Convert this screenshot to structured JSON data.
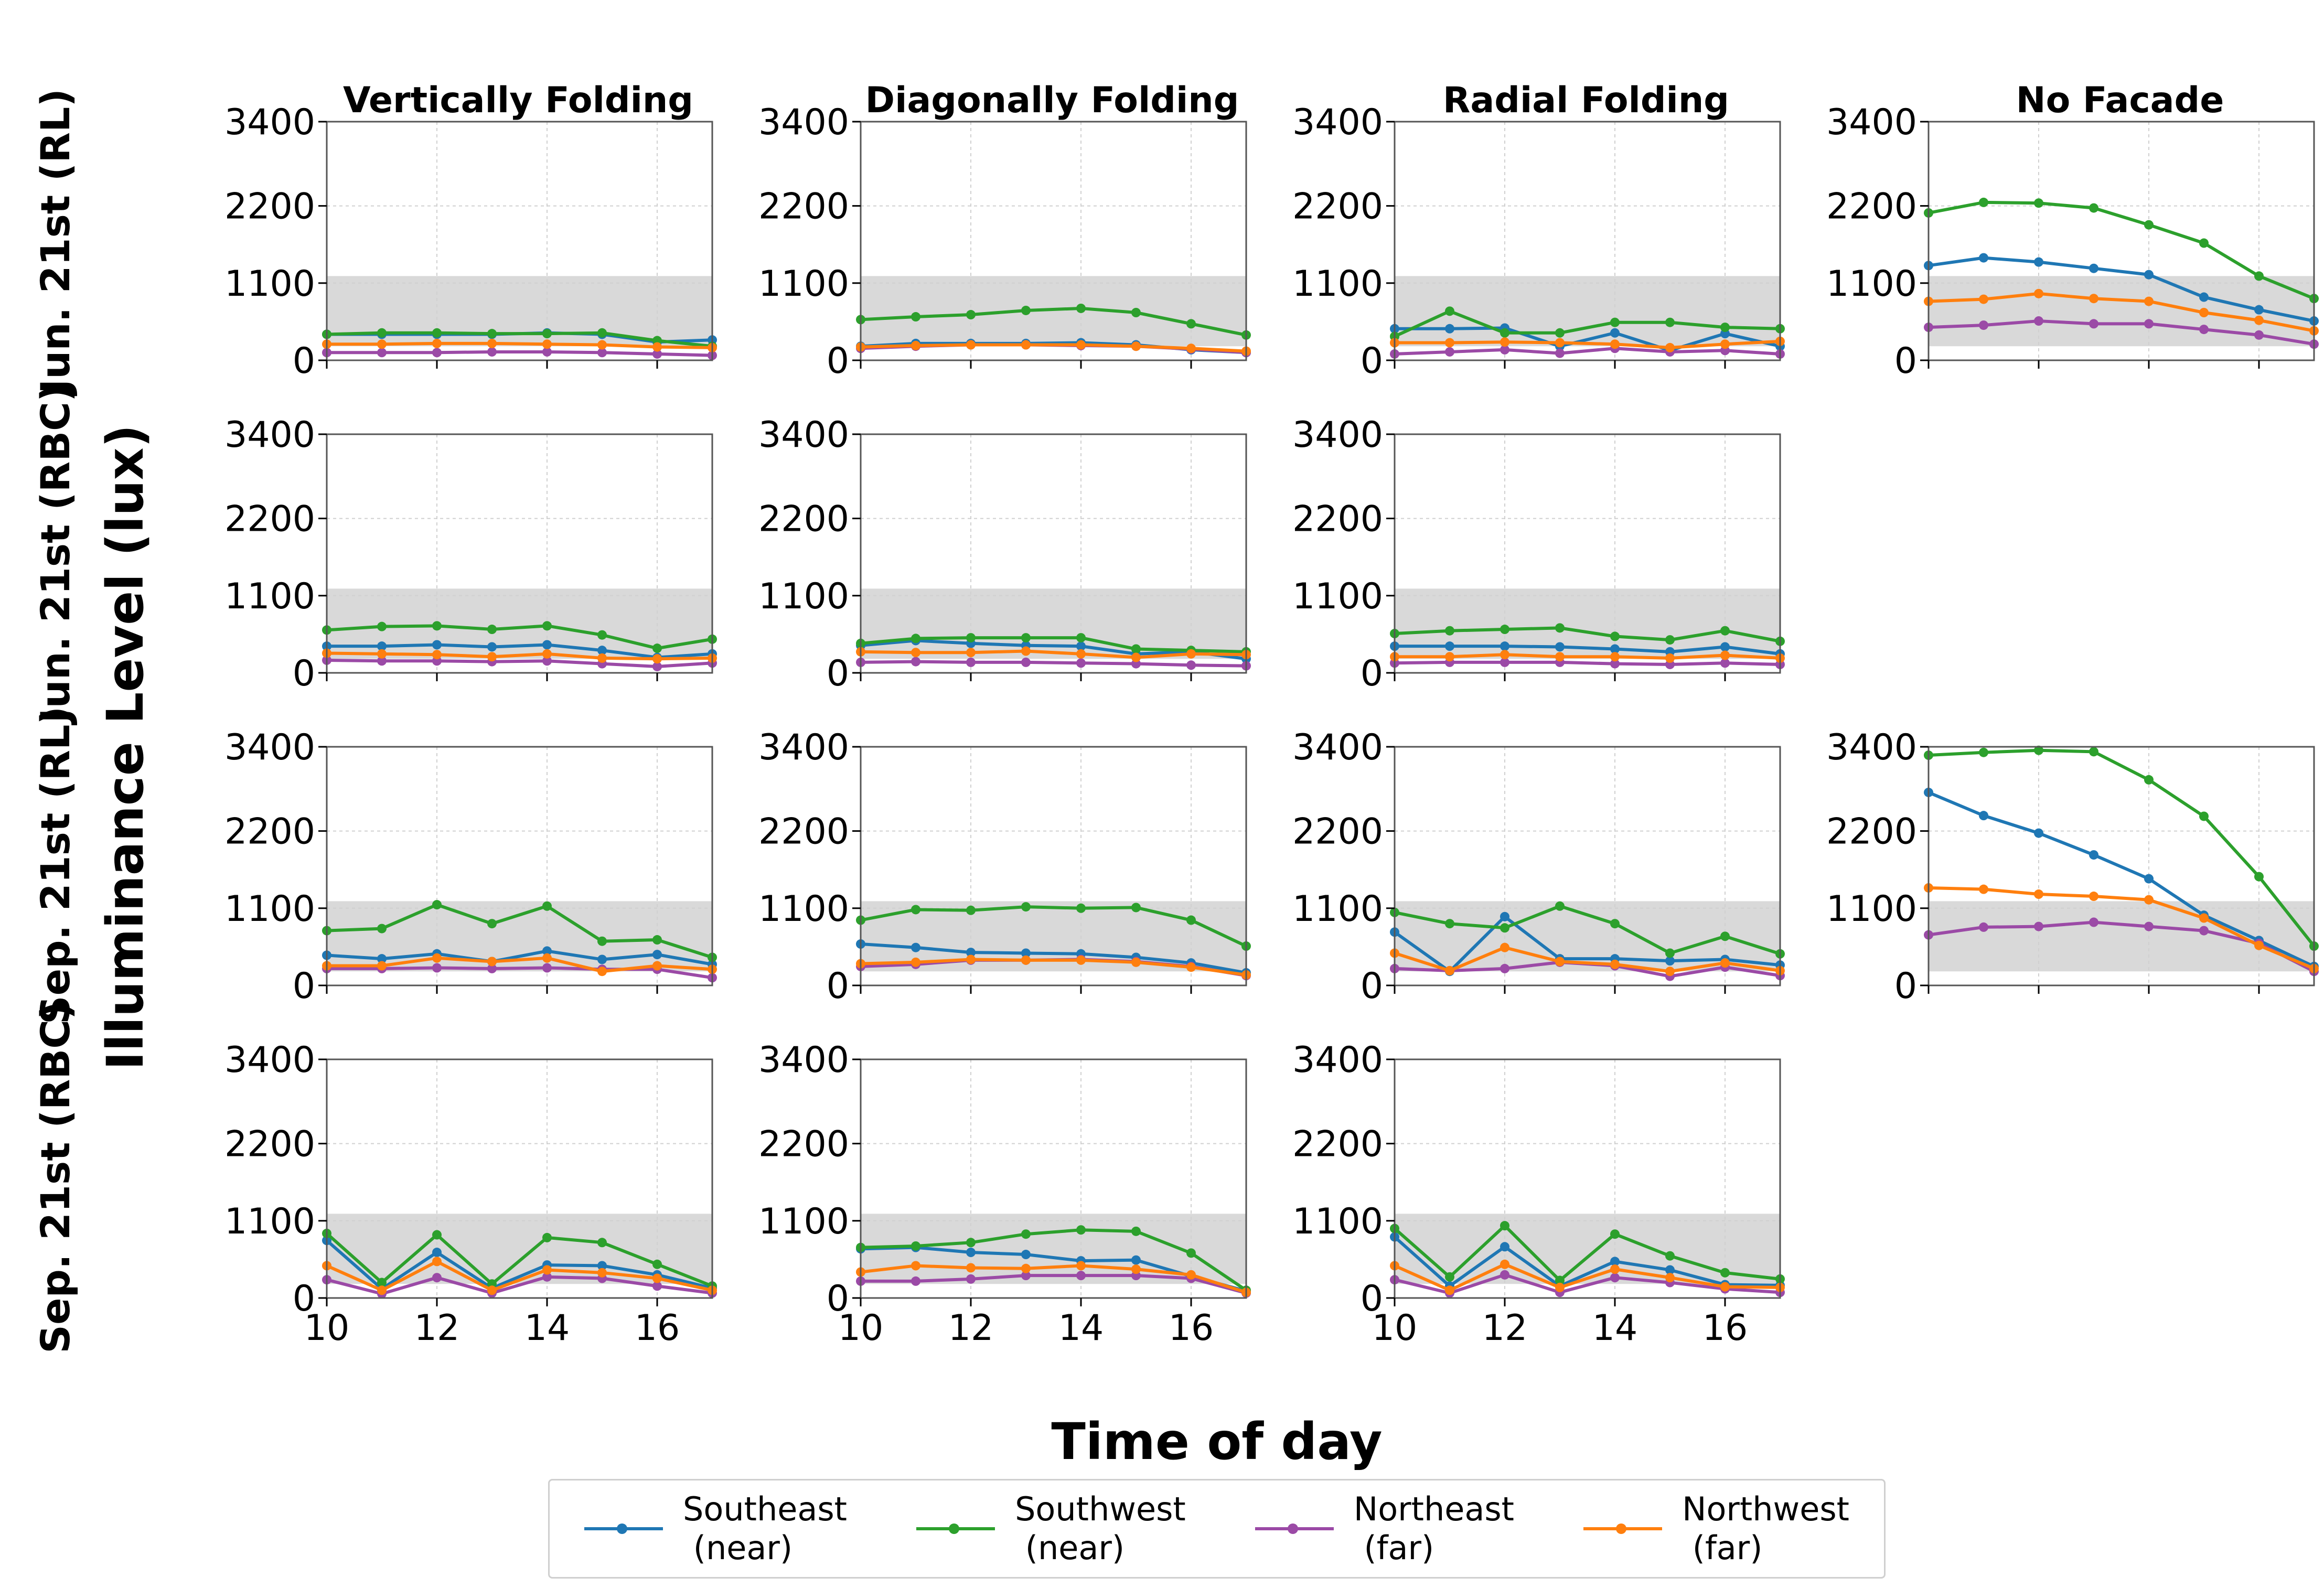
{
  "figure": {
    "ylabel": "Illuminance Level (lux)",
    "xlabel": "Time of day",
    "columns": [
      "Vertically Folding",
      "Diagonally Folding",
      "Radial Folding",
      "No Facade"
    ],
    "rows": [
      "Jun. 21st (RL)",
      "Jun. 21st (RBC)",
      "Sep. 21st (RL)",
      "Sep. 21st (RBC)"
    ]
  },
  "colors": {
    "Southeast (near)": "#1f77b4",
    "Southwest (near)": "#2ca02c",
    "Northeast (far)": "#9b4aa6",
    "Northwest (far)": "#ff7f0e",
    "band": "#d9d9d9",
    "grid": "#d0d0d0"
  },
  "legend": [
    {
      "label": "Southeast\n (near)",
      "series": "Southeast (near)"
    },
    {
      "label": "Southwest\n (near)",
      "series": "Southwest (near)"
    },
    {
      "label": "Northeast\n (far)",
      "series": "Northeast (far)"
    },
    {
      "label": "Northwest\n (far)",
      "series": "Northwest (far)"
    }
  ],
  "chart_data": {
    "type": "line",
    "x": [
      10,
      11,
      12,
      13,
      14,
      15,
      16,
      17
    ],
    "xlim": [
      10,
      17
    ],
    "xticks": [
      10,
      12,
      14,
      16
    ],
    "ylim": [
      0,
      3400
    ],
    "yticks": [
      0,
      1100,
      2200,
      3400
    ],
    "band": [
      200,
      1200
    ],
    "grid": true,
    "legend_placement": "bottom",
    "panels": [
      {
        "row": 0,
        "col": 0,
        "series": [
          {
            "name": "Southeast (near)",
            "values": [
              370,
              370,
              370,
              370,
              390,
              370,
              260,
              290
            ]
          },
          {
            "name": "Southwest (near)",
            "values": [
              370,
              390,
              390,
              380,
              380,
              390,
              280,
              200
            ]
          },
          {
            "name": "Northeast (far)",
            "values": [
              110,
              110,
              110,
              120,
              120,
              110,
              90,
              70
            ]
          },
          {
            "name": "Northwest (far)",
            "values": [
              230,
              230,
              240,
              240,
              230,
              220,
              190,
              180
            ]
          }
        ]
      },
      {
        "row": 0,
        "col": 1,
        "series": [
          {
            "name": "Southeast (near)",
            "values": [
              200,
              240,
              240,
              240,
              250,
              220,
              150,
              110
            ]
          },
          {
            "name": "Southwest (near)",
            "values": [
              580,
              620,
              650,
              710,
              740,
              680,
              520,
              360
            ]
          },
          {
            "name": "Northeast (far)",
            "values": [
              170,
              200,
              220,
              220,
              210,
              200,
              160,
              110
            ]
          },
          {
            "name": "Northwest (far)",
            "values": [
              190,
              210,
              220,
              220,
              220,
              200,
              170,
              130
            ]
          }
        ]
      },
      {
        "row": 0,
        "col": 2,
        "series": [
          {
            "name": "Southeast (near)",
            "values": [
              450,
              450,
              460,
              200,
              390,
              140,
              380,
              200
            ]
          },
          {
            "name": "Southwest (near)",
            "values": [
              340,
              700,
              390,
              390,
              540,
              540,
              470,
              450
            ]
          },
          {
            "name": "Northeast (far)",
            "values": [
              90,
              120,
              150,
              100,
              170,
              120,
              140,
              90
            ]
          },
          {
            "name": "Northwest (far)",
            "values": [
              250,
              250,
              260,
              250,
              230,
              180,
              230,
              270
            ]
          }
        ]
      },
      {
        "row": 0,
        "col": 3,
        "series": [
          {
            "name": "Southeast (near)",
            "values": [
              1350,
              1460,
              1400,
              1310,
              1220,
              900,
              720,
              560
            ]
          },
          {
            "name": "Southwest (near)",
            "values": [
              2100,
              2250,
              2240,
              2170,
              1930,
              1670,
              1200,
              880
            ]
          },
          {
            "name": "Northeast (far)",
            "values": [
              470,
              500,
              560,
              520,
              520,
              440,
              360,
              230
            ]
          },
          {
            "name": "Northwest (far)",
            "values": [
              840,
              870,
              950,
              880,
              840,
              680,
              570,
              420
            ]
          }
        ]
      },
      {
        "row": 1,
        "col": 0,
        "series": [
          {
            "name": "Southeast (near)",
            "values": [
              380,
              380,
              400,
              370,
              400,
              320,
              220,
              270
            ]
          },
          {
            "name": "Southwest (near)",
            "values": [
              610,
              660,
              670,
              620,
              670,
              540,
              350,
              480
            ]
          },
          {
            "name": "Northeast (far)",
            "values": [
              180,
              170,
              170,
              160,
              170,
              130,
              90,
              140
            ]
          },
          {
            "name": "Northwest (far)",
            "values": [
              280,
              270,
              260,
              230,
              270,
              210,
              200,
              210
            ]
          }
        ]
      },
      {
        "row": 1,
        "col": 1,
        "series": [
          {
            "name": "Southeast (near)",
            "values": [
              390,
              460,
              420,
              390,
              380,
              270,
              300,
              200
            ]
          },
          {
            "name": "Southwest (near)",
            "values": [
              420,
              490,
              500,
              500,
              500,
              340,
              320,
              300
            ]
          },
          {
            "name": "Northeast (far)",
            "values": [
              150,
              160,
              150,
              150,
              140,
              130,
              110,
              100
            ]
          },
          {
            "name": "Northwest (far)",
            "values": [
              300,
              290,
              290,
              310,
              270,
              220,
              270,
              260
            ]
          }
        ]
      },
      {
        "row": 1,
        "col": 2,
        "series": [
          {
            "name": "Southeast (near)",
            "values": [
              380,
              380,
              380,
              370,
              340,
              300,
              370,
              270
            ]
          },
          {
            "name": "Southwest (near)",
            "values": [
              560,
              600,
              620,
              640,
              520,
              470,
              600,
              450
            ]
          },
          {
            "name": "Northeast (far)",
            "values": [
              140,
              150,
              150,
              150,
              130,
              120,
              140,
              120
            ]
          },
          {
            "name": "Northwest (far)",
            "values": [
              230,
              230,
              260,
              230,
              230,
              210,
              250,
              210
            ]
          }
        ]
      },
      {
        "row": 2,
        "col": 0,
        "series": [
          {
            "name": "Southeast (near)",
            "values": [
              430,
              380,
              450,
              340,
              490,
              370,
              440,
              300
            ]
          },
          {
            "name": "Southwest (near)",
            "values": [
              780,
              810,
              1150,
              880,
              1130,
              630,
              650,
              400
            ]
          },
          {
            "name": "Northeast (far)",
            "values": [
              240,
              240,
              250,
              240,
              250,
              230,
              230,
              110
            ]
          },
          {
            "name": "Northwest (far)",
            "values": [
              280,
              280,
              390,
              340,
              390,
              200,
              280,
              230
            ]
          }
        ]
      },
      {
        "row": 2,
        "col": 1,
        "series": [
          {
            "name": "Southeast (near)",
            "values": [
              590,
              540,
              470,
              460,
              450,
              400,
              320,
              180
            ]
          },
          {
            "name": "Southwest (near)",
            "values": [
              930,
              1080,
              1070,
              1120,
              1100,
              1110,
              930,
              560
            ]
          },
          {
            "name": "Northeast (far)",
            "values": [
              270,
              300,
              360,
              360,
              370,
              340,
              270,
              140
            ]
          },
          {
            "name": "Northwest (far)",
            "values": [
              310,
              330,
              370,
              360,
              360,
              330,
              260,
              150
            ]
          }
        ]
      },
      {
        "row": 2,
        "col": 2,
        "series": [
          {
            "name": "Southeast (near)",
            "values": [
              760,
              200,
              980,
              380,
              380,
              350,
              370,
              290
            ]
          },
          {
            "name": "Southwest (near)",
            "values": [
              1040,
              880,
              820,
              1130,
              880,
              460,
              700,
              450
            ]
          },
          {
            "name": "Northeast (far)",
            "values": [
              240,
              210,
              240,
              330,
              280,
              130,
              260,
              140
            ]
          },
          {
            "name": "Northwest (far)",
            "values": [
              460,
              210,
              540,
              340,
              300,
              200,
              320,
              210
            ]
          }
        ]
      },
      {
        "row": 2,
        "col": 3,
        "series": [
          {
            "name": "Southeast (near)",
            "values": [
              2750,
              2420,
              2170,
              1860,
              1520,
              1000,
              640,
              270
            ]
          },
          {
            "name": "Southwest (near)",
            "values": [
              3280,
              3320,
              3350,
              3330,
              2930,
              2410,
              1550,
              560
            ]
          },
          {
            "name": "Northeast (far)",
            "values": [
              720,
              830,
              840,
              900,
              840,
              780,
              600,
              200
            ]
          },
          {
            "name": "Northwest (far)",
            "values": [
              1390,
              1370,
              1300,
              1270,
              1220,
              960,
              570,
              240
            ]
          }
        ]
      },
      {
        "row": 3,
        "col": 0,
        "series": [
          {
            "name": "Southeast (near)",
            "values": [
              820,
              130,
              650,
              140,
              470,
              460,
              330,
              140
            ]
          },
          {
            "name": "Southwest (near)",
            "values": [
              920,
              220,
              900,
              200,
              860,
              790,
              480,
              170
            ]
          },
          {
            "name": "Northeast (far)",
            "values": [
              260,
              60,
              290,
              70,
              300,
              280,
              170,
              70
            ]
          },
          {
            "name": "Northwest (far)",
            "values": [
              460,
              110,
              520,
              110,
              400,
              360,
              280,
              110
            ]
          }
        ]
      },
      {
        "row": 3,
        "col": 1,
        "series": [
          {
            "name": "Southeast (near)",
            "values": [
              700,
              720,
              650,
              620,
              530,
              540,
              310,
              100
            ]
          },
          {
            "name": "Southwest (near)",
            "values": [
              720,
              740,
              790,
              910,
              970,
              950,
              640,
              110
            ]
          },
          {
            "name": "Northeast (far)",
            "values": [
              240,
              240,
              270,
              320,
              320,
              320,
              280,
              70
            ]
          },
          {
            "name": "Northwest (far)",
            "values": [
              370,
              460,
              430,
              420,
              460,
              410,
              330,
              80
            ]
          }
        ]
      },
      {
        "row": 3,
        "col": 2,
        "series": [
          {
            "name": "Southeast (near)",
            "values": [
              870,
              170,
              730,
              170,
              520,
              400,
              190,
              180
            ]
          },
          {
            "name": "Southwest (near)",
            "values": [
              990,
              300,
              1030,
              250,
              910,
              600,
              360,
              270
            ]
          },
          {
            "name": "Northeast (far)",
            "values": [
              260,
              70,
              330,
              80,
              290,
              220,
              130,
              80
            ]
          },
          {
            "name": "Northwest (far)",
            "values": [
              460,
              110,
              480,
              150,
              410,
              290,
              160,
              150
            ]
          }
        ]
      }
    ]
  }
}
